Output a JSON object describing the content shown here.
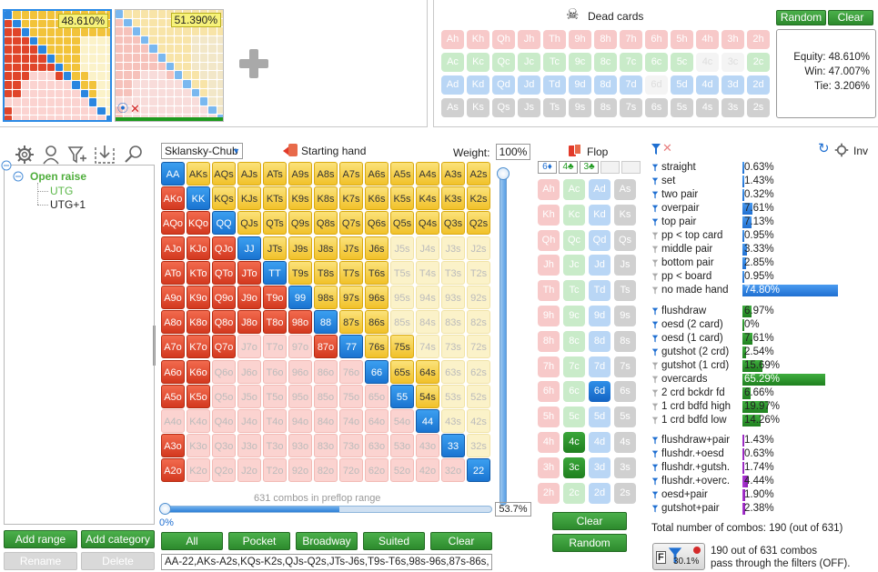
{
  "thumbs": [
    {
      "equity": "48.610%"
    },
    {
      "equity": "51.390%"
    }
  ],
  "dead_cards": {
    "title": "Dead cards",
    "rows": [
      [
        "Ah",
        "Kh",
        "Qh",
        "Jh",
        "Th",
        "9h",
        "8h",
        "7h",
        "6h",
        "5h",
        "4h",
        "3h",
        "2h"
      ],
      [
        "Ac",
        "Kc",
        "Qc",
        "Jc",
        "Tc",
        "9c",
        "8c",
        "7c",
        "6c",
        "5c",
        "4c",
        "3c",
        "2c"
      ],
      [
        "Ad",
        "Kd",
        "Qd",
        "Jd",
        "Td",
        "9d",
        "8d",
        "7d",
        "6d",
        "5d",
        "4d",
        "3d",
        "2d"
      ],
      [
        "As",
        "Ks",
        "Qs",
        "Js",
        "Ts",
        "9s",
        "8s",
        "7s",
        "6s",
        "5s",
        "4s",
        "3s",
        "2s"
      ]
    ],
    "random_label": "Random",
    "clear_label": "Clear"
  },
  "equity_box": {
    "equity": "Equity: 48.610%",
    "win": "Win: 47.007%",
    "tie": "Tie: 3.206%"
  },
  "tree": {
    "root": "Open raise",
    "children": [
      "UTG",
      "UTG+1"
    ]
  },
  "left_buttons": {
    "add_range": "Add range",
    "add_category": "Add category",
    "rename": "Rename",
    "delete": "Delete"
  },
  "range": {
    "preset": "Sklansky-Chub",
    "starting_hand_label": "Starting hand",
    "weight_label": "Weight:",
    "weight_value": "100%",
    "combos_label": "631 combos in preflop range",
    "slider_left": "0%",
    "slider_right": "53.7%",
    "slider_fraction": 0.537,
    "buttons": [
      "All",
      "Pocket",
      "Broadway",
      "Suited",
      "Clear"
    ],
    "text": "AA-22,AKs-A2s,KQs-K2s,QJs-Q2s,JTs-J6s,T9s-T6s,98s-96s,87s-86s,",
    "hands": [
      [
        "AA",
        "AKs",
        "AQs",
        "AJs",
        "ATs",
        "A9s",
        "A8s",
        "A7s",
        "A6s",
        "A5s",
        "A4s",
        "A3s",
        "A2s"
      ],
      [
        "AKo",
        "KK",
        "KQs",
        "KJs",
        "KTs",
        "K9s",
        "K8s",
        "K7s",
        "K6s",
        "K5s",
        "K4s",
        "K3s",
        "K2s"
      ],
      [
        "AQo",
        "KQo",
        "QQ",
        "QJs",
        "QTs",
        "Q9s",
        "Q8s",
        "Q7s",
        "Q6s",
        "Q5s",
        "Q4s",
        "Q3s",
        "Q2s"
      ],
      [
        "AJo",
        "KJo",
        "QJo",
        "JJ",
        "JTs",
        "J9s",
        "J8s",
        "J7s",
        "J6s",
        "J5s",
        "J4s",
        "J3s",
        "J2s"
      ],
      [
        "ATo",
        "KTo",
        "QTo",
        "JTo",
        "TT",
        "T9s",
        "T8s",
        "T7s",
        "T6s",
        "T5s",
        "T4s",
        "T3s",
        "T2s"
      ],
      [
        "A9o",
        "K9o",
        "Q9o",
        "J9o",
        "T9o",
        "99",
        "98s",
        "97s",
        "96s",
        "95s",
        "94s",
        "93s",
        "92s"
      ],
      [
        "A8o",
        "K8o",
        "Q8o",
        "J8o",
        "T8o",
        "98o",
        "88",
        "87s",
        "86s",
        "85s",
        "84s",
        "83s",
        "82s"
      ],
      [
        "A7o",
        "K7o",
        "Q7o",
        "J7o",
        "T7o",
        "97o",
        "87o",
        "77",
        "76s",
        "75s",
        "74s",
        "73s",
        "72s"
      ],
      [
        "A6o",
        "K6o",
        "Q6o",
        "J6o",
        "T6o",
        "96o",
        "86o",
        "76o",
        "66",
        "65s",
        "64s",
        "63s",
        "62s"
      ],
      [
        "A5o",
        "K5o",
        "Q5o",
        "J5o",
        "T5o",
        "95o",
        "85o",
        "75o",
        "65o",
        "55",
        "54s",
        "53s",
        "52s"
      ],
      [
        "A4o",
        "K4o",
        "Q4o",
        "J4o",
        "T4o",
        "94o",
        "84o",
        "74o",
        "64o",
        "54o",
        "44",
        "43s",
        "42s"
      ],
      [
        "A3o",
        "K3o",
        "Q3o",
        "J3o",
        "T3o",
        "93o",
        "83o",
        "73o",
        "63o",
        "53o",
        "43o",
        "33",
        "32s"
      ],
      [
        "A2o",
        "K2o",
        "Q2o",
        "J2o",
        "T2o",
        "92o",
        "82o",
        "72o",
        "62o",
        "52o",
        "42o",
        "32o",
        "22"
      ]
    ],
    "selected": [
      [
        1,
        1,
        1,
        1,
        1,
        1,
        1,
        1,
        1,
        1,
        1,
        1,
        1
      ],
      [
        1,
        1,
        1,
        1,
        1,
        1,
        1,
        1,
        1,
        1,
        1,
        1,
        1
      ],
      [
        1,
        1,
        1,
        1,
        1,
        1,
        1,
        1,
        1,
        1,
        1,
        1,
        1
      ],
      [
        1,
        1,
        1,
        1,
        1,
        1,
        1,
        1,
        1,
        0,
        0,
        0,
        0
      ],
      [
        1,
        1,
        1,
        1,
        1,
        1,
        1,
        1,
        1,
        0,
        0,
        0,
        0
      ],
      [
        1,
        1,
        1,
        1,
        1,
        1,
        1,
        1,
        1,
        0,
        0,
        0,
        0
      ],
      [
        1,
        1,
        1,
        1,
        1,
        1,
        1,
        1,
        1,
        0,
        0,
        0,
        0
      ],
      [
        1,
        1,
        1,
        0,
        0,
        0,
        1,
        1,
        1,
        1,
        0,
        0,
        0
      ],
      [
        1,
        1,
        0,
        0,
        0,
        0,
        0,
        0,
        1,
        1,
        1,
        0,
        0
      ],
      [
        1,
        1,
        0,
        0,
        0,
        0,
        0,
        0,
        0,
        1,
        1,
        0,
        0
      ],
      [
        0,
        0,
        0,
        0,
        0,
        0,
        0,
        0,
        0,
        0,
        1,
        0,
        0
      ],
      [
        1,
        0,
        0,
        0,
        0,
        0,
        0,
        0,
        0,
        0,
        0,
        1,
        0
      ],
      [
        1,
        0,
        0,
        0,
        0,
        0,
        0,
        0,
        0,
        0,
        0,
        0,
        1
      ]
    ]
  },
  "flop": {
    "title": "Flop",
    "board": [
      "6♦",
      "4♣",
      "3♣"
    ],
    "rows": [
      [
        "Ah",
        "Ac",
        "Ad",
        "As"
      ],
      [
        "Kh",
        "Kc",
        "Kd",
        "Ks"
      ],
      [
        "Qh",
        "Qc",
        "Qd",
        "Qs"
      ],
      [
        "Jh",
        "Jc",
        "Jd",
        "Js"
      ],
      [
        "Th",
        "Tc",
        "Td",
        "Ts"
      ],
      [
        "9h",
        "9c",
        "9d",
        "9s"
      ],
      [
        "8h",
        "8c",
        "8d",
        "8s"
      ],
      [
        "7h",
        "7c",
        "7d",
        "7s"
      ],
      [
        "6h",
        "6c",
        "6d",
        "6s"
      ],
      [
        "5h",
        "5c",
        "5d",
        "5s"
      ],
      [
        "4h",
        "4c",
        "4d",
        "4s"
      ],
      [
        "3h",
        "3c",
        "3d",
        "3s"
      ],
      [
        "2h",
        "2c",
        "2d",
        "2s"
      ]
    ],
    "clear_label": "Clear",
    "random_label": "Random"
  },
  "filters": {
    "inv_label": "Inv",
    "groups": [
      [
        {
          "label": "straight",
          "pct": "0.63%",
          "v": 0.63,
          "on": true
        },
        {
          "label": "set",
          "pct": "1.43%",
          "v": 1.43,
          "on": true
        },
        {
          "label": "two pair",
          "pct": "0.32%",
          "v": 0.32,
          "on": true
        },
        {
          "label": "overpair",
          "pct": "7.61%",
          "v": 7.61,
          "on": true
        },
        {
          "label": "top pair",
          "pct": "7.13%",
          "v": 7.13,
          "on": true
        },
        {
          "label": "pp < top card",
          "pct": "0.95%",
          "v": 0.95,
          "on": false
        },
        {
          "label": "middle pair",
          "pct": "3.33%",
          "v": 3.33,
          "on": false
        },
        {
          "label": "bottom pair",
          "pct": "2.85%",
          "v": 2.85,
          "on": false
        },
        {
          "label": "pp < board",
          "pct": "0.95%",
          "v": 0.95,
          "on": false
        },
        {
          "label": "no made hand",
          "pct": "74.80%",
          "v": 74.8,
          "on": false
        }
      ],
      [
        {
          "label": "flushdraw",
          "pct": "6.97%",
          "v": 6.97,
          "on": true
        },
        {
          "label": "oesd (2 card)",
          "pct": "0%",
          "v": 0,
          "on": true
        },
        {
          "label": "oesd (1 card)",
          "pct": "7.61%",
          "v": 7.61,
          "on": true
        },
        {
          "label": "gutshot (2 crd)",
          "pct": "2.54%",
          "v": 2.54,
          "on": true
        },
        {
          "label": "gutshot (1 crd)",
          "pct": "15.69%",
          "v": 15.69,
          "on": false
        },
        {
          "label": "overcards",
          "pct": "65.29%",
          "v": 65.29,
          "on": false
        },
        {
          "label": "2 crd bckdr fd",
          "pct": "6.66%",
          "v": 6.66,
          "on": false
        },
        {
          "label": "1 crd bdfd high",
          "pct": "19.97%",
          "v": 19.97,
          "on": false
        },
        {
          "label": "1 crd bdfd low",
          "pct": "14.26%",
          "v": 14.26,
          "on": false
        }
      ],
      [
        {
          "label": "flushdraw+pair",
          "pct": "1.43%",
          "v": 1.43,
          "on": true
        },
        {
          "label": "flushdr.+oesd",
          "pct": "0.63%",
          "v": 0.63,
          "on": true
        },
        {
          "label": "flushdr.+gutsh.",
          "pct": "1.74%",
          "v": 1.74,
          "on": true
        },
        {
          "label": "flushdr.+overc.",
          "pct": "4.44%",
          "v": 4.44,
          "on": true
        },
        {
          "label": "oesd+pair",
          "pct": "1.90%",
          "v": 1.9,
          "on": true
        },
        {
          "label": "gutshot+pair",
          "pct": "2.38%",
          "v": 2.38,
          "on": true
        }
      ]
    ],
    "total": "Total number of combos: 190 (out of 631)",
    "badge_pct": "30.1%",
    "summary_line1": "190 out of 631 combos",
    "summary_line2": "pass through the filters (OFF)."
  }
}
